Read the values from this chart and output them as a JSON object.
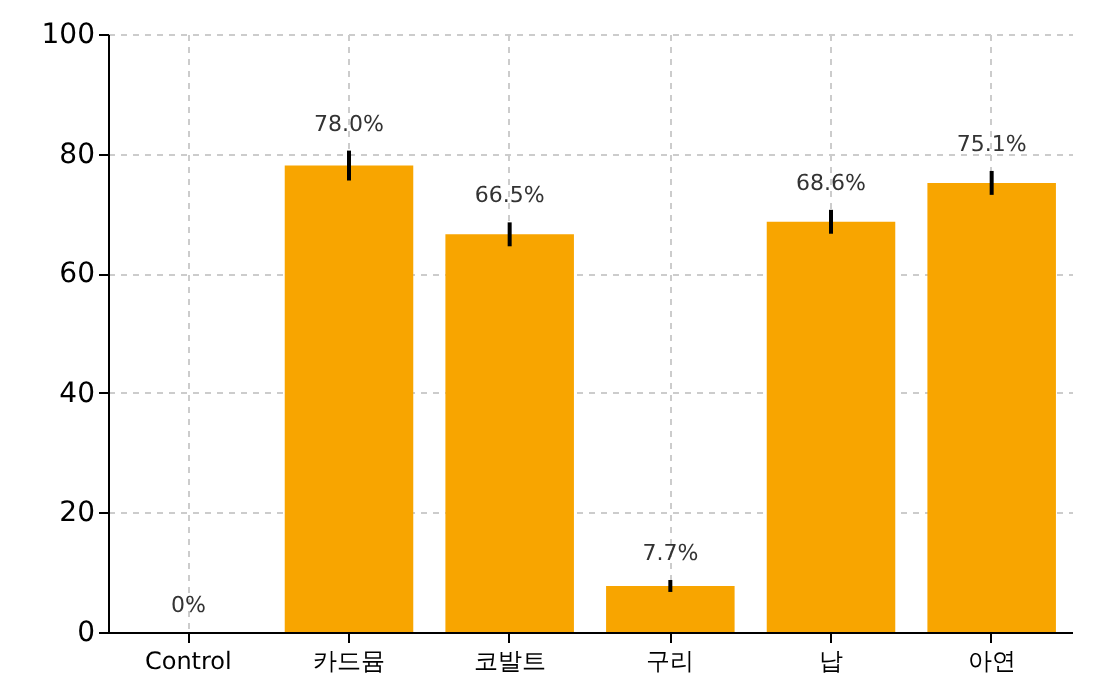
{
  "chart_data": {
    "type": "bar",
    "categories": [
      "Control",
      "카드뮴",
      "코발트",
      "구리",
      "납",
      "아연"
    ],
    "values": [
      0,
      78.0,
      66.5,
      7.7,
      68.6,
      75.1
    ],
    "value_labels": [
      "0%",
      "78.0%",
      "66.5%",
      "7.7%",
      "68.6%",
      "75.1%"
    ],
    "errors": [
      null,
      2.5,
      2,
      1,
      2,
      2
    ],
    "color": "#f8a500",
    "ylim": [
      0,
      100
    ],
    "yticks": [
      0,
      20,
      40,
      60,
      80,
      100
    ],
    "grid": true
  }
}
